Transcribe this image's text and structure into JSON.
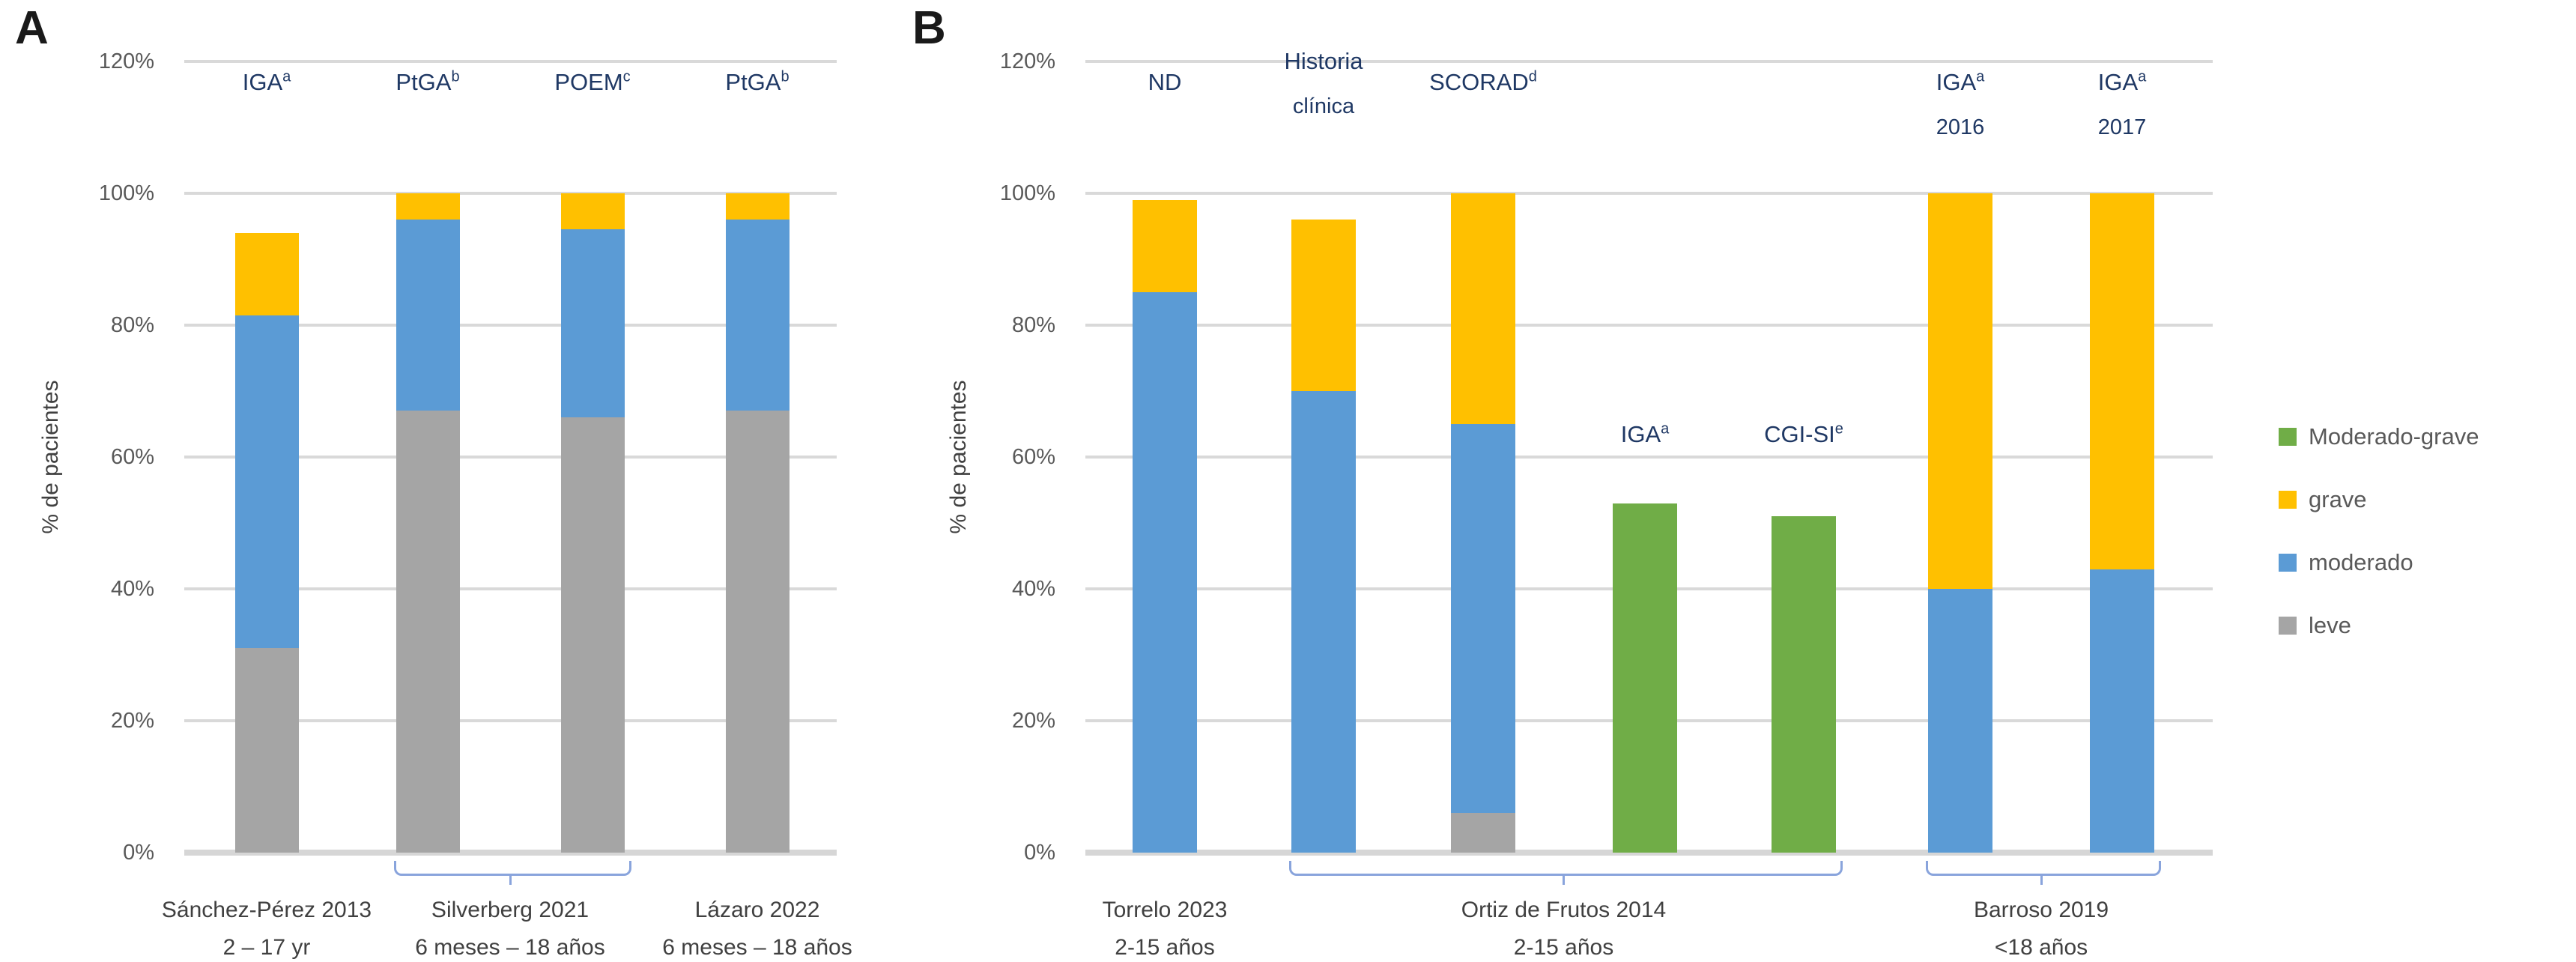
{
  "chart_data": {
    "type": "stacked-bar",
    "unit": "%",
    "ylabel": "% de pacientes",
    "ylim": [
      0,
      120
    ],
    "ytick_step": 20,
    "ytick_labels": [
      "0%",
      "20%",
      "40%",
      "60%",
      "80%",
      "100%",
      "120%"
    ],
    "grid": true,
    "legend_position": "right",
    "legend": [
      {
        "key": "moderado_grave",
        "label": "Moderado-grave",
        "color": "#70AD47"
      },
      {
        "key": "grave",
        "label": "grave",
        "color": "#FFC000"
      },
      {
        "key": "moderado",
        "label": "moderado",
        "color": "#5B9BD5"
      },
      {
        "key": "leve",
        "label": "leve",
        "color": "#A5A5A5"
      }
    ],
    "text_colors": {
      "instrument_label": "#1F3864",
      "axis_text": "#595959",
      "group_text": "#404040"
    },
    "panels": [
      {
        "panel_label": "A",
        "ylabel": "% de pacientes",
        "bars": [
          {
            "label": {
              "lines": [
                {
                  "text": "IGA",
                  "sup": "a"
                }
              ]
            },
            "label_position": "top",
            "values": {
              "leve": 31,
              "moderado": 50.5,
              "grave": 12.5
            }
          },
          {
            "label": {
              "lines": [
                {
                  "text": "PtGA",
                  "sup": "b"
                }
              ]
            },
            "label_position": "top",
            "values": {
              "leve": 67,
              "moderado": 29,
              "grave": 4
            }
          },
          {
            "label": {
              "lines": [
                {
                  "text": "POEM",
                  "sup": "c"
                }
              ]
            },
            "label_position": "top",
            "values": {
              "leve": 66,
              "moderado": 28.5,
              "grave": 5.5
            }
          },
          {
            "label": {
              "lines": [
                {
                  "text": "PtGA",
                  "sup": "b"
                }
              ]
            },
            "label_position": "top",
            "values": {
              "leve": 67,
              "moderado": 29,
              "grave": 4
            }
          }
        ],
        "groups": [
          {
            "title": "Sánchez-Pérez 2013",
            "subtitle": "2 – 17 yr",
            "bar_indices": [
              0
            ],
            "brace": false
          },
          {
            "title": "Silverberg 2021",
            "subtitle": "6 meses – 18 años",
            "bar_indices": [
              1,
              2
            ],
            "brace": true
          },
          {
            "title": "Lázaro 2022",
            "subtitle": "6 meses – 18 años",
            "bar_indices": [
              3
            ],
            "brace": false
          }
        ]
      },
      {
        "panel_label": "B",
        "ylabel": "% de pacientes",
        "bars": [
          {
            "label": {
              "lines": [
                {
                  "text": "ND"
                }
              ]
            },
            "label_position": "top",
            "values": {
              "moderado": 85,
              "grave": 14
            }
          },
          {
            "label": {
              "lines": [
                {
                  "text": "Historia"
                },
                {
                  "text": "clínica"
                }
              ]
            },
            "label_position": "top",
            "values": {
              "moderado": 70,
              "grave": 26
            }
          },
          {
            "label": {
              "lines": [
                {
                  "text": "SCORAD",
                  "sup": "d"
                }
              ]
            },
            "label_position": "top",
            "values": {
              "leve": 6,
              "moderado": 59,
              "grave": 35
            }
          },
          {
            "label": {
              "lines": [
                {
                  "text": "IGA",
                  "sup": "a"
                }
              ]
            },
            "label_position": "mid",
            "values": {
              "moderado_grave": 53
            }
          },
          {
            "label": {
              "lines": [
                {
                  "text": "CGI-SI",
                  "sup": "e"
                }
              ]
            },
            "label_position": "mid",
            "values": {
              "moderado_grave": 51
            }
          },
          {
            "label": {
              "lines": [
                {
                  "text": "IGA",
                  "sup": "a"
                },
                {
                  "text": "2016"
                }
              ]
            },
            "label_position": "top",
            "values": {
              "moderado": 40,
              "grave": 60
            }
          },
          {
            "label": {
              "lines": [
                {
                  "text": "IGA",
                  "sup": "a"
                },
                {
                  "text": "2017"
                }
              ]
            },
            "label_position": "top",
            "values": {
              "moderado": 43,
              "grave": 57
            }
          }
        ],
        "groups": [
          {
            "title": "Torrelo 2023",
            "subtitle": "2-15 años",
            "bar_indices": [
              0
            ],
            "brace": false
          },
          {
            "title": "Ortiz de Frutos 2014",
            "subtitle": "2-15 años",
            "bar_indices": [
              1,
              2,
              3,
              4
            ],
            "brace": true
          },
          {
            "title": "Barroso 2019",
            "subtitle": "<18 años",
            "bar_indices": [
              5,
              6
            ],
            "brace": true
          }
        ]
      }
    ]
  }
}
